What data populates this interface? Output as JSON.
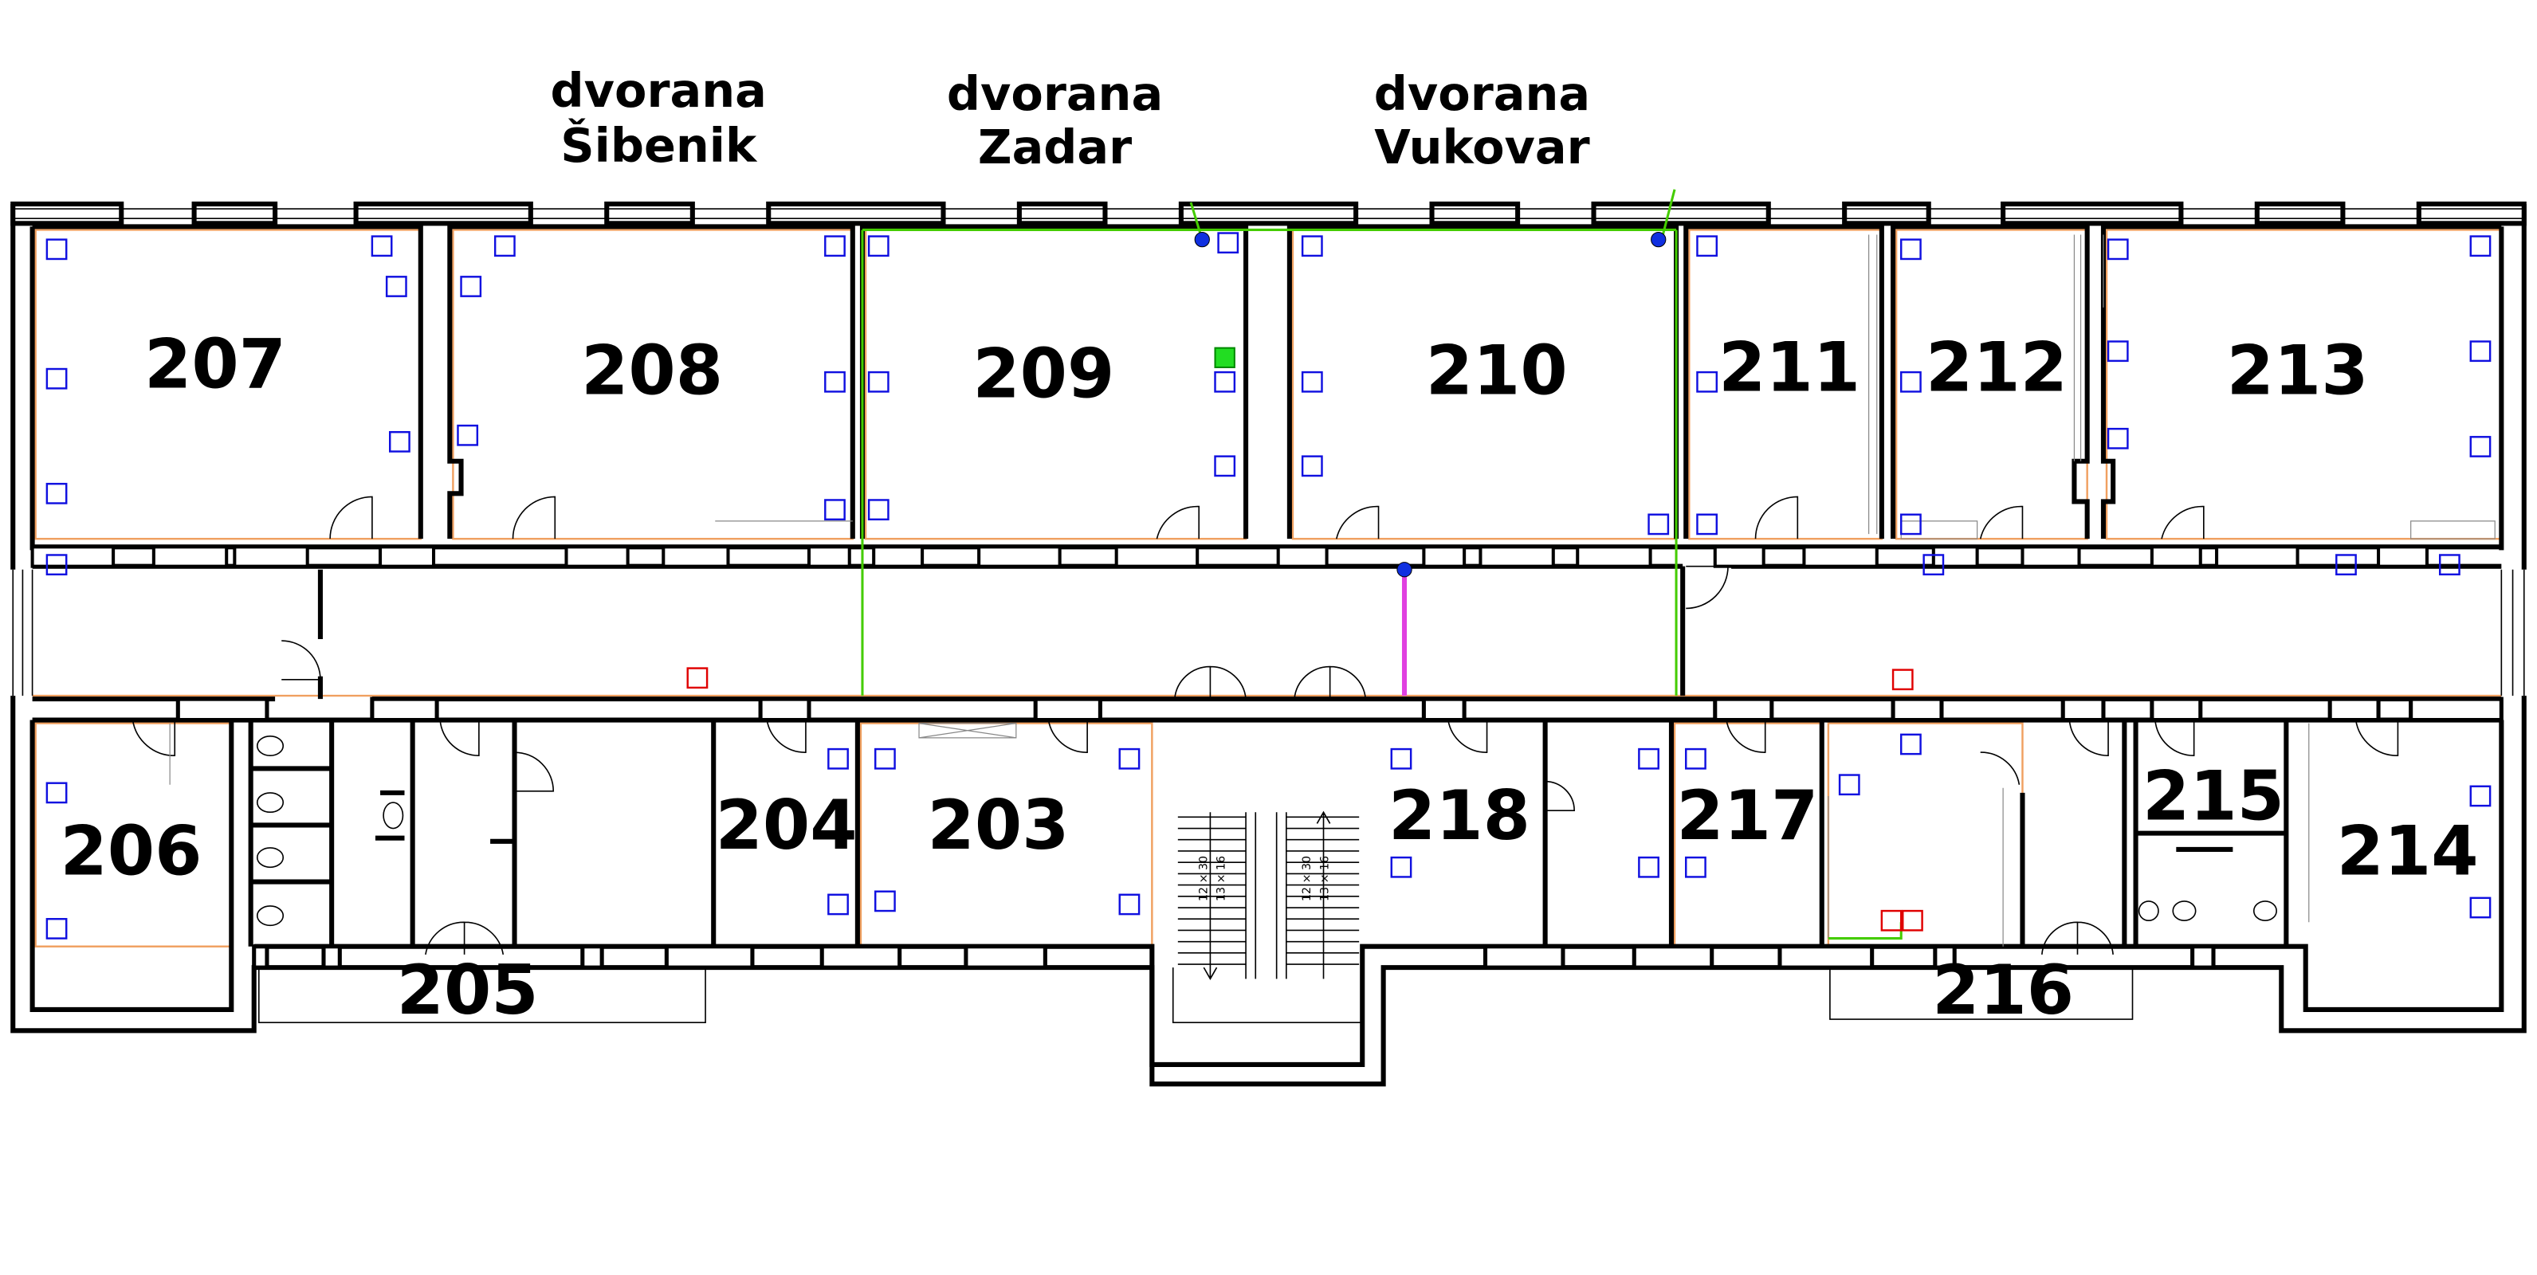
{
  "hall_labels": [
    {
      "line1": "dvorana",
      "line2": "Šibenik"
    },
    {
      "line1": "dvorana",
      "line2": "Zadar"
    },
    {
      "line1": "dvorana",
      "line2": "Vukovar"
    }
  ],
  "rooms": [
    "207",
    "208",
    "209",
    "210",
    "211",
    "212",
    "213",
    "206",
    "205",
    "204",
    "203",
    "218",
    "217",
    "216",
    "215",
    "214"
  ],
  "stair_notes": [
    "12 × 30",
    "13 × 16"
  ]
}
